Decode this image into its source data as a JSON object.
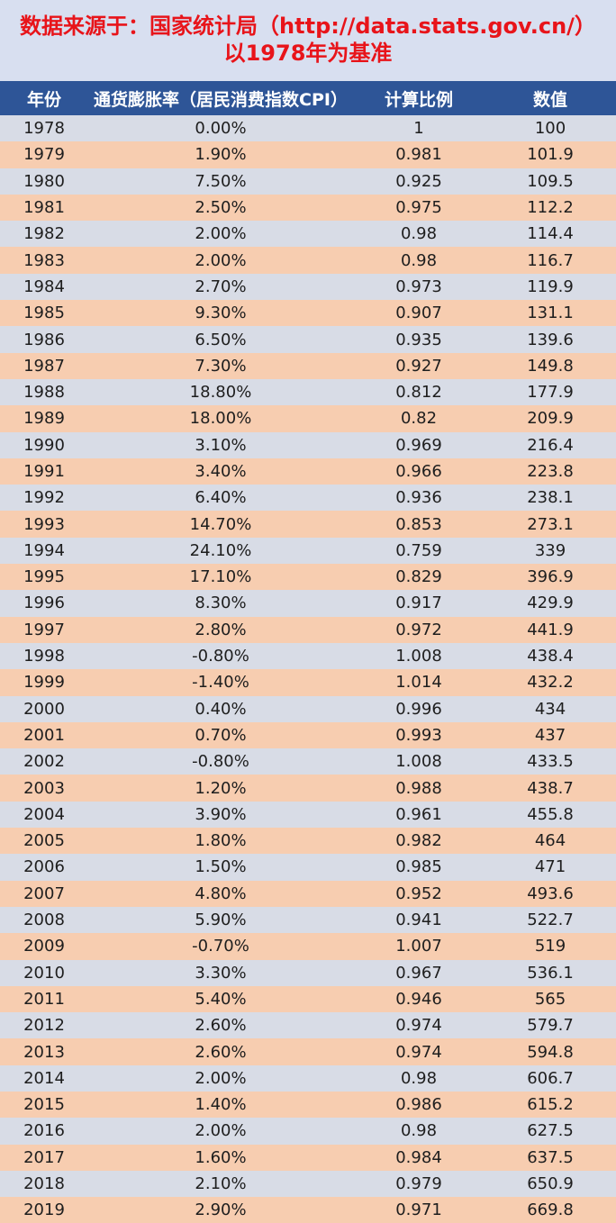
{
  "header": {
    "line1": "数据来源于：国家统计局（http://data.stats.gov.cn/）",
    "line2": "以1978年为基准"
  },
  "columns": [
    "年份",
    "通货膨胀率（居民消费指数CPI）",
    "计算比例",
    "数值"
  ],
  "rows": [
    [
      "1978",
      "0.00%",
      "1",
      "100"
    ],
    [
      "1979",
      "1.90%",
      "0.981",
      "101.9"
    ],
    [
      "1980",
      "7.50%",
      "0.925",
      "109.5"
    ],
    [
      "1981",
      "2.50%",
      "0.975",
      "112.2"
    ],
    [
      "1982",
      "2.00%",
      "0.98",
      "114.4"
    ],
    [
      "1983",
      "2.00%",
      "0.98",
      "116.7"
    ],
    [
      "1984",
      "2.70%",
      "0.973",
      "119.9"
    ],
    [
      "1985",
      "9.30%",
      "0.907",
      "131.1"
    ],
    [
      "1986",
      "6.50%",
      "0.935",
      "139.6"
    ],
    [
      "1987",
      "7.30%",
      "0.927",
      "149.8"
    ],
    [
      "1988",
      "18.80%",
      "0.812",
      "177.9"
    ],
    [
      "1989",
      "18.00%",
      "0.82",
      "209.9"
    ],
    [
      "1990",
      "3.10%",
      "0.969",
      "216.4"
    ],
    [
      "1991",
      "3.40%",
      "0.966",
      "223.8"
    ],
    [
      "1992",
      "6.40%",
      "0.936",
      "238.1"
    ],
    [
      "1993",
      "14.70%",
      "0.853",
      "273.1"
    ],
    [
      "1994",
      "24.10%",
      "0.759",
      "339"
    ],
    [
      "1995",
      "17.10%",
      "0.829",
      "396.9"
    ],
    [
      "1996",
      "8.30%",
      "0.917",
      "429.9"
    ],
    [
      "1997",
      "2.80%",
      "0.972",
      "441.9"
    ],
    [
      "1998",
      "-0.80%",
      "1.008",
      "438.4"
    ],
    [
      "1999",
      "-1.40%",
      "1.014",
      "432.2"
    ],
    [
      "2000",
      "0.40%",
      "0.996",
      "434"
    ],
    [
      "2001",
      "0.70%",
      "0.993",
      "437"
    ],
    [
      "2002",
      "-0.80%",
      "1.008",
      "433.5"
    ],
    [
      "2003",
      "1.20%",
      "0.988",
      "438.7"
    ],
    [
      "2004",
      "3.90%",
      "0.961",
      "455.8"
    ],
    [
      "2005",
      "1.80%",
      "0.982",
      "464"
    ],
    [
      "2006",
      "1.50%",
      "0.985",
      "471"
    ],
    [
      "2007",
      "4.80%",
      "0.952",
      "493.6"
    ],
    [
      "2008",
      "5.90%",
      "0.941",
      "522.7"
    ],
    [
      "2009",
      "-0.70%",
      "1.007",
      "519"
    ],
    [
      "2010",
      "3.30%",
      "0.967",
      "536.1"
    ],
    [
      "2011",
      "5.40%",
      "0.946",
      "565"
    ],
    [
      "2012",
      "2.60%",
      "0.974",
      "579.7"
    ],
    [
      "2013",
      "2.60%",
      "0.974",
      "594.8"
    ],
    [
      "2014",
      "2.00%",
      "0.98",
      "606.7"
    ],
    [
      "2015",
      "1.40%",
      "0.986",
      "615.2"
    ],
    [
      "2016",
      "2.00%",
      "0.98",
      "627.5"
    ],
    [
      "2017",
      "1.60%",
      "0.984",
      "637.5"
    ],
    [
      "2018",
      "2.10%",
      "0.979",
      "650.9"
    ],
    [
      "2019",
      "2.90%",
      "0.971",
      "669.8"
    ]
  ]
}
